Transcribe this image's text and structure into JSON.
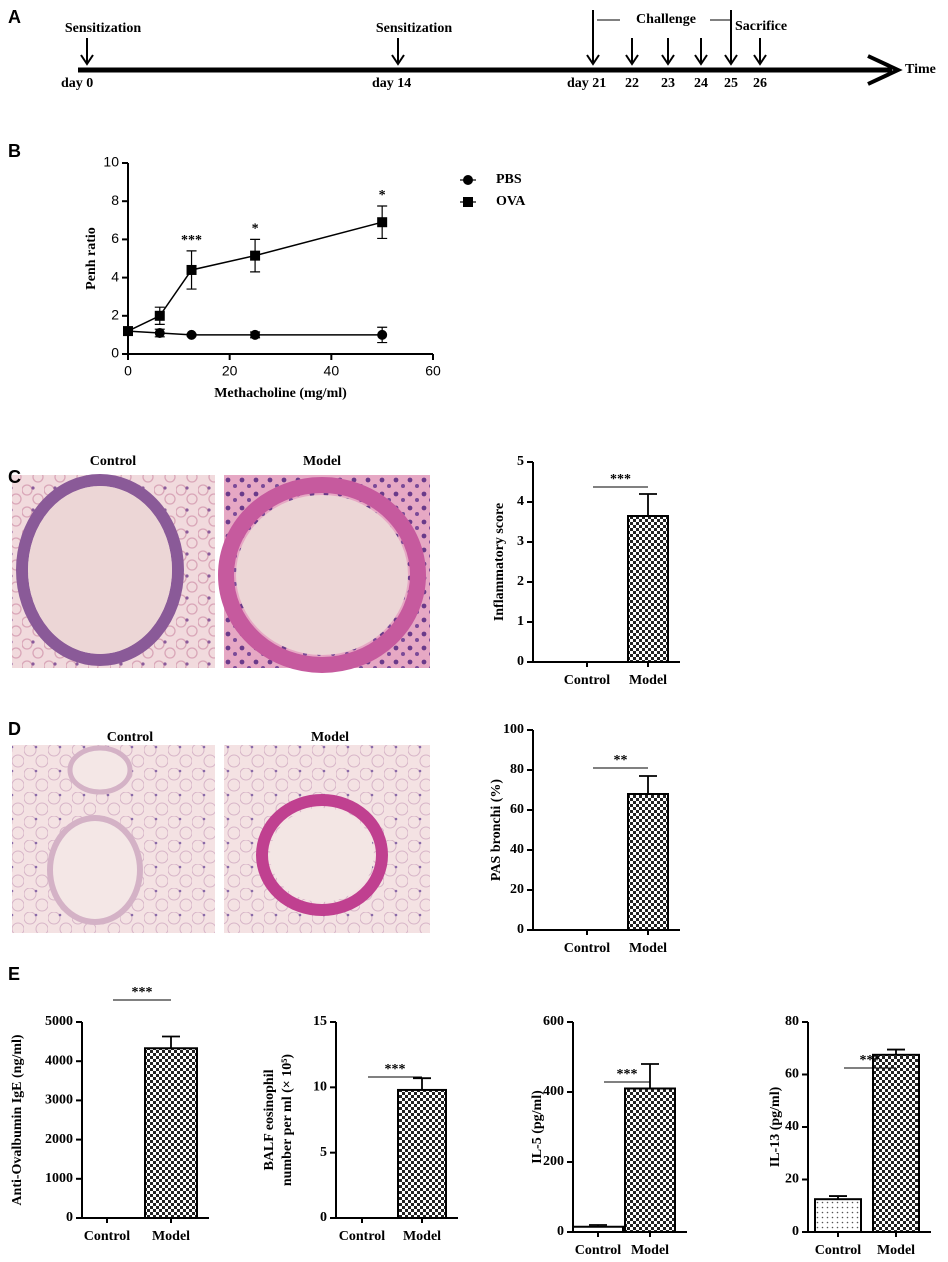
{
  "panel_labels": [
    "A",
    "B",
    "C",
    "D",
    "E"
  ],
  "timeline": {
    "axis_label": "Time",
    "phase": "Challenge",
    "end": "Sacrifice",
    "events": [
      {
        "label": "Sensitization",
        "day": "day 0"
      },
      {
        "label": "Sensitization",
        "day": "day 14"
      },
      {
        "day": "day 21"
      },
      {
        "day": "22"
      },
      {
        "day": "23"
      },
      {
        "day": "24"
      },
      {
        "day": "25"
      },
      {
        "day": "26"
      }
    ]
  },
  "micrograph_titles": [
    [
      "Control",
      "Model"
    ],
    [
      "Control",
      "Model"
    ]
  ],
  "chart_data": [
    {
      "type": "line",
      "xlabel": "Methacholine (mg/ml)",
      "ylabel": "Penh ratio",
      "x": [
        0,
        6.25,
        12.5,
        25,
        50
      ],
      "series": [
        {
          "name": "PBS",
          "marker": "circle",
          "color": "#000000",
          "values": [
            1.2,
            1.1,
            1.0,
            1.0,
            1.0
          ],
          "errors": [
            0.15,
            0.2,
            0.05,
            0.15,
            0.4
          ]
        },
        {
          "name": "OVA",
          "marker": "square",
          "color": "#000000",
          "values": [
            1.2,
            2.0,
            4.4,
            5.15,
            6.9
          ],
          "errors": [
            0.1,
            0.45,
            1.0,
            0.85,
            0.85
          ]
        }
      ],
      "annotations": [
        null,
        null,
        "***",
        "*",
        "*"
      ],
      "xlim": [
        0,
        60
      ],
      "xticks": [
        0,
        20,
        40,
        60
      ],
      "ylim": [
        0,
        10
      ],
      "yticks": [
        0,
        2,
        4,
        6,
        8,
        10
      ]
    },
    {
      "type": "bar",
      "ylabel": [
        "Inflammatory score"
      ],
      "categories": [
        "Control",
        "Model"
      ],
      "values": [
        0,
        3.65
      ],
      "errors": [
        0,
        0.55
      ],
      "fills": [
        "plain",
        "checker"
      ],
      "significance": "***",
      "ylim": [
        0,
        5
      ],
      "yticks": [
        0,
        1,
        2,
        3,
        4,
        5
      ]
    },
    {
      "type": "bar",
      "ylabel": [
        "PAS bronchi (%)"
      ],
      "categories": [
        "Control",
        "Model"
      ],
      "values": [
        0,
        68
      ],
      "errors": [
        0,
        9
      ],
      "fills": [
        "plain",
        "checker"
      ],
      "significance": "**",
      "ylim": [
        0,
        100
      ],
      "yticks": [
        0,
        20,
        40,
        60,
        80,
        100
      ]
    },
    {
      "type": "bar",
      "ylabel": [
        "Anti-Ovalbumin IgE (ng/ml)"
      ],
      "categories": [
        "Control",
        "Model"
      ],
      "values": [
        0,
        4330
      ],
      "errors": [
        0,
        300
      ],
      "fills": [
        "plain",
        "checker"
      ],
      "significance": "***",
      "ylim": [
        0,
        5000
      ],
      "yticks": [
        0,
        1000,
        2000,
        3000,
        4000,
        5000
      ]
    },
    {
      "type": "bar",
      "ylabel": [
        "BALF eosinophil",
        "number per ml (× 10⁵)"
      ],
      "categories": [
        "Control",
        "Model"
      ],
      "values": [
        0,
        9.8
      ],
      "errors": [
        0,
        0.9
      ],
      "fills": [
        "plain",
        "checker"
      ],
      "significance": "***",
      "ylim": [
        0,
        15
      ],
      "yticks": [
        0,
        5,
        10,
        15
      ]
    },
    {
      "type": "bar",
      "ylabel": [
        "IL-5 (pg/ml)"
      ],
      "categories": [
        "Control",
        "Model"
      ],
      "values": [
        15,
        410
      ],
      "errors": [
        5,
        70
      ],
      "fills": [
        "plain",
        "checker"
      ],
      "significance": "***",
      "ylim": [
        0,
        600
      ],
      "yticks": [
        0,
        200,
        400,
        600
      ]
    },
    {
      "type": "bar",
      "ylabel": [
        "IL-13 (pg/ml)"
      ],
      "categories": [
        "Control",
        "Model"
      ],
      "values": [
        12.5,
        67.5
      ],
      "errors": [
        1.2,
        2
      ],
      "fills": [
        "dots",
        "checker"
      ],
      "significance": "***",
      "ylim": [
        0,
        80
      ],
      "yticks": [
        0,
        20,
        40,
        60,
        80
      ]
    }
  ]
}
